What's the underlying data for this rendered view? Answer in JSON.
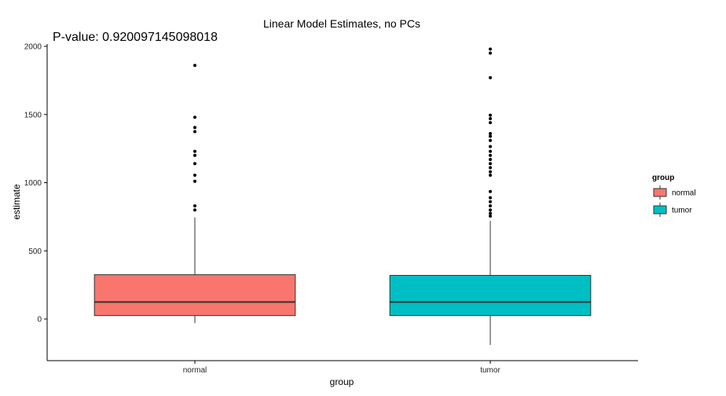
{
  "chart_data": {
    "type": "boxplot",
    "title": "Linear Model Estimates, no PCs",
    "annotation": "P-value: 0.920097145098018",
    "xlabel": "group",
    "ylabel": "estimate",
    "categories": [
      "normal",
      "tumor"
    ],
    "ylim": [
      -310,
      2080
    ],
    "yticks": [
      0,
      500,
      1000,
      1500,
      2000
    ],
    "grid": false,
    "legend": {
      "title": "group",
      "position": "right",
      "entries": [
        "normal",
        "tumor"
      ]
    },
    "colors": {
      "normal": "#F8766D",
      "tumor": "#00BFC4"
    },
    "boxes": [
      {
        "name": "normal",
        "whisker_low": -30,
        "q1": 25,
        "median": 125,
        "q3": 325,
        "whisker_high": 745,
        "outliers": [
          800,
          830,
          1010,
          1055,
          1140,
          1200,
          1230,
          1375,
          1405,
          1480,
          1860
        ]
      },
      {
        "name": "tumor",
        "whisker_low": -190,
        "q1": 25,
        "median": 125,
        "q3": 320,
        "whisker_high": 720,
        "outliers": [
          755,
          775,
          800,
          830,
          860,
          890,
          935,
          1055,
          1080,
          1110,
          1140,
          1170,
          1200,
          1230,
          1265,
          1310,
          1340,
          1360,
          1440,
          1470,
          1495,
          1770,
          1950,
          1980
        ]
      }
    ]
  }
}
